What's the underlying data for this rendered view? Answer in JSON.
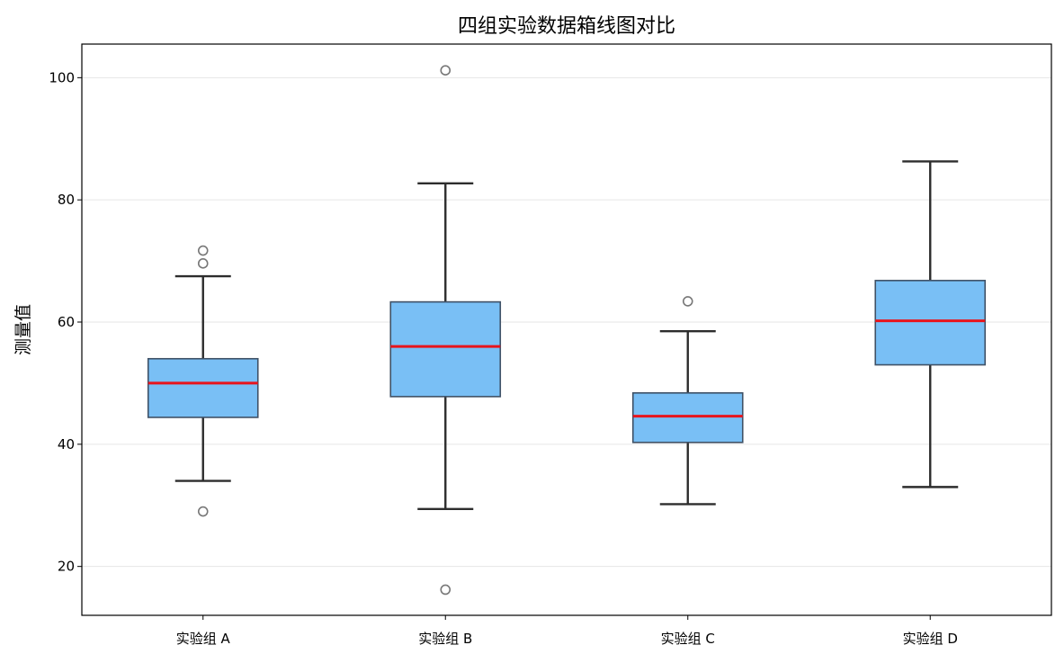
{
  "chart_data": {
    "type": "boxplot",
    "title": "四组实验数据箱线图对比",
    "xlabel": "",
    "ylabel": "测量值",
    "ylim": [
      12,
      105.5
    ],
    "yticks": [
      20,
      40,
      60,
      80,
      100
    ],
    "grid": "horizontal",
    "categories": [
      "实验组 A",
      "实验组 B",
      "实验组 C",
      "实验组 D"
    ],
    "boxes": [
      {
        "whisker_low": 34.0,
        "q1": 44.4,
        "median": 50.0,
        "q3": 54.0,
        "whisker_high": 67.5,
        "outliers": [
          71.7,
          69.6,
          29.0
        ]
      },
      {
        "whisker_low": 29.4,
        "q1": 47.8,
        "median": 56.0,
        "q3": 63.3,
        "whisker_high": 82.7,
        "outliers": [
          101.2,
          16.2
        ]
      },
      {
        "whisker_low": 30.2,
        "q1": 40.3,
        "median": 44.6,
        "q3": 48.4,
        "whisker_high": 58.5,
        "outliers": [
          63.4
        ]
      },
      {
        "whisker_low": 33.0,
        "q1": 53.0,
        "median": 60.2,
        "q3": 66.8,
        "whisker_high": 86.3,
        "outliers": []
      }
    ],
    "colors": {
      "box_fill": "#79bff5",
      "box_edge": "#3f5166",
      "median": "#e8141c",
      "whisker": "#2d2d2d",
      "outlier_edge": "#777777",
      "grid": "#e6e6e6",
      "frame": "#000000"
    }
  }
}
